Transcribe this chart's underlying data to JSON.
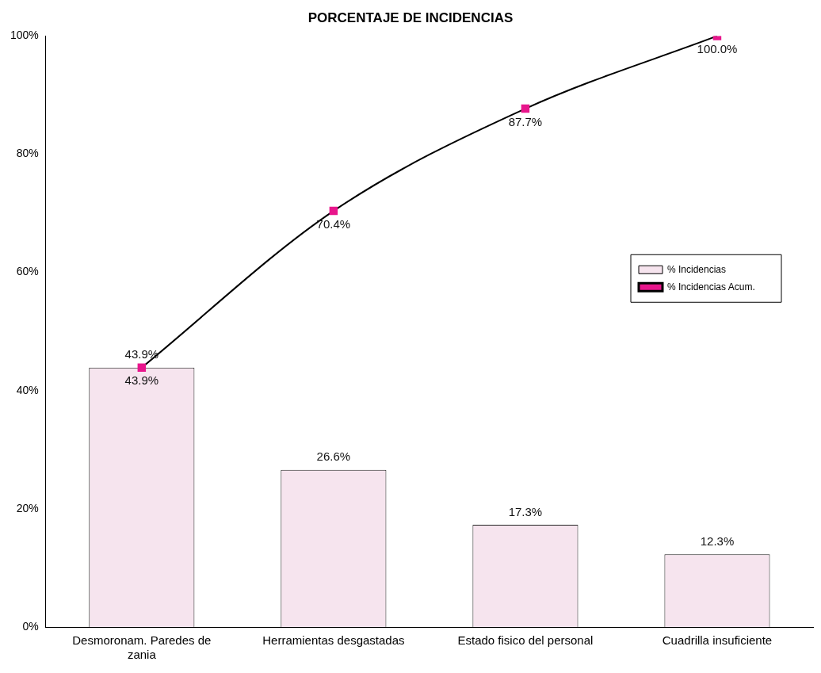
{
  "chart_data": {
    "type": "bar",
    "title": "PORCENTAJE DE INCIDENCIAS",
    "categories": [
      "Desmoronam. Paredes de zania",
      "Herramientas desgastadas",
      "Estado fisico del personal",
      "Cuadrilla insuficiente"
    ],
    "series": [
      {
        "name": "% Incidencias",
        "color": "#f6e4ee",
        "values": [
          43.9,
          26.6,
          17.3,
          12.3
        ],
        "value_labels": [
          "43.9%",
          "26.6%",
          "17.3%",
          "12.3%"
        ]
      },
      {
        "name": "% Incidencias Acum.",
        "type": "line",
        "color": "#000000",
        "colors": [
          "#e8168c",
          "#e8168c",
          "#e8168c",
          "#e8168c"
        ],
        "values": [
          43.9,
          70.4,
          87.7,
          100.0
        ],
        "value_labels": [
          "43.9%",
          "70.4%",
          "87.7%",
          "100.0%"
        ]
      }
    ],
    "ylim": [
      0,
      100
    ],
    "yticks": [
      {
        "value": 0,
        "label": "0%"
      },
      {
        "value": 20,
        "label": "20%"
      },
      {
        "value": 40,
        "label": "40%"
      },
      {
        "value": 60,
        "label": "60%"
      },
      {
        "value": 80,
        "label": "80%"
      },
      {
        "value": 100,
        "label": "100%"
      }
    ],
    "grid": false,
    "legend": "right",
    "marker": "square",
    "line_style": "solid"
  }
}
